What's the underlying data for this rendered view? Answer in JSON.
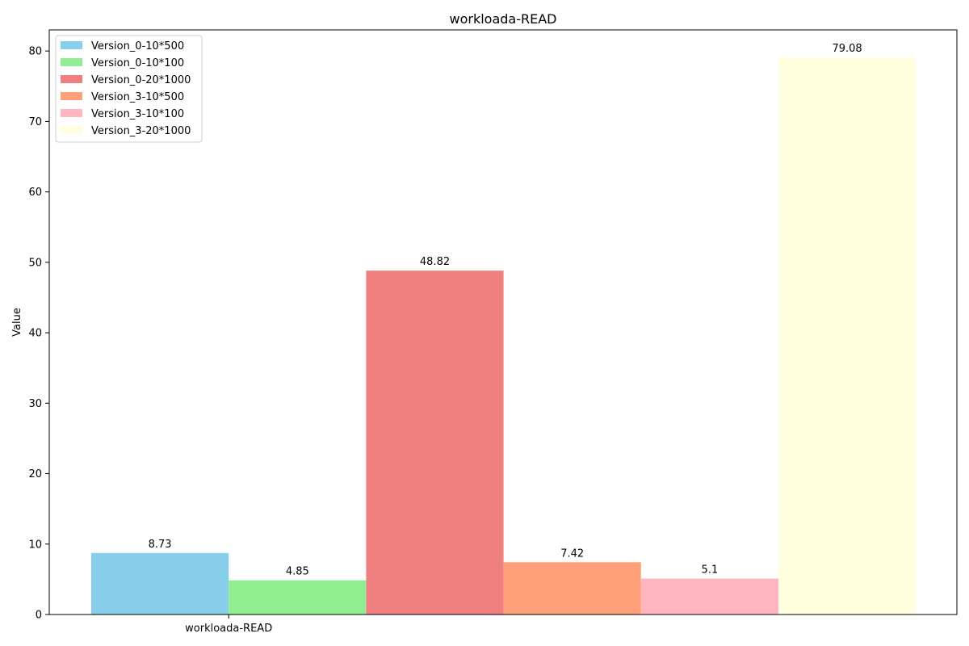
{
  "chart_data": {
    "type": "bar",
    "title": "workloada-READ",
    "xlabel": "",
    "ylabel": "Value",
    "categories": [
      "workloada-READ"
    ],
    "series": [
      {
        "name": "Version_0-10*500",
        "values": [
          8.73
        ],
        "color": "#87CEEB",
        "label": "8.73"
      },
      {
        "name": "Version_0-10*100",
        "values": [
          4.85
        ],
        "color": "#90EE90",
        "label": "4.85"
      },
      {
        "name": "Version_0-20*1000",
        "values": [
          48.82
        ],
        "color": "#F08080",
        "label": "48.82"
      },
      {
        "name": "Version_3-10*500",
        "values": [
          7.42
        ],
        "color": "#FFA07A",
        "label": "7.42"
      },
      {
        "name": "Version_3-10*100",
        "values": [
          5.1
        ],
        "color": "#FFB6C1",
        "label": "5.1"
      },
      {
        "name": "Version_3-20*1000",
        "values": [
          79.08
        ],
        "color": "#FFFFE0",
        "label": "79.08"
      }
    ],
    "ylim": [
      0,
      83
    ],
    "yticks": [
      0,
      10,
      20,
      30,
      40,
      50,
      60,
      70,
      80
    ],
    "legend_position": "top-left",
    "grid": false
  }
}
